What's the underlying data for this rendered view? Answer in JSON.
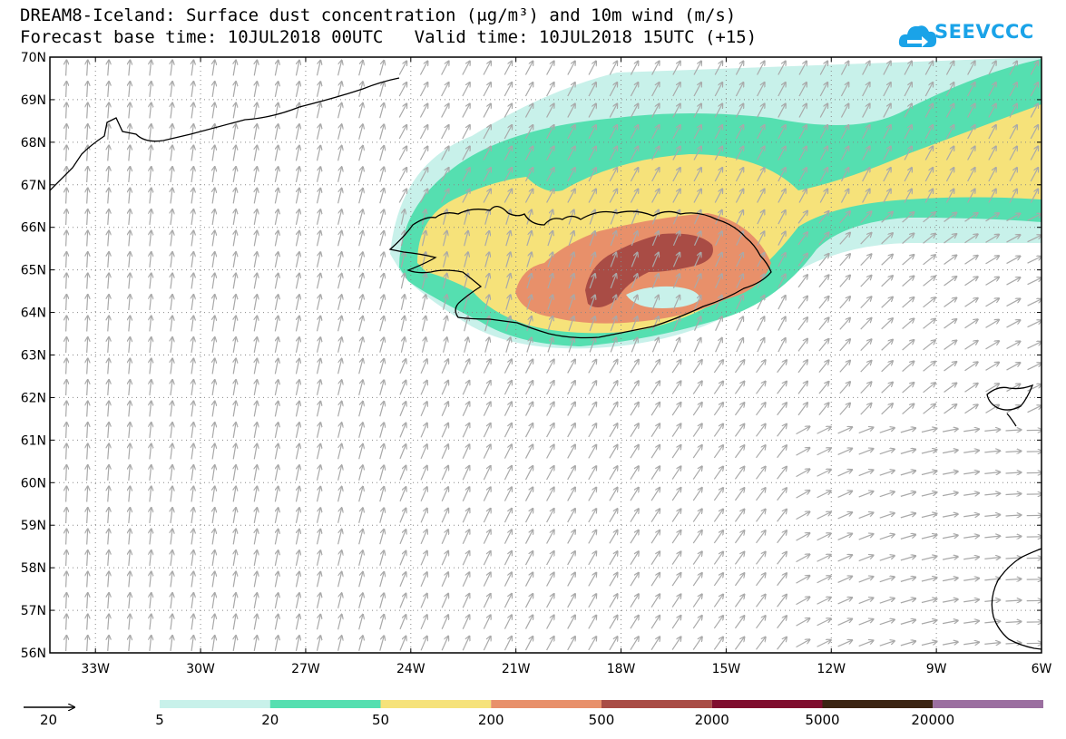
{
  "title": {
    "line1": "DREAM8-Iceland: Surface dust concentration (μg/m³) and 10m wind (m/s)",
    "line2": "Forecast base time: 10JUL2018 00UTC   Valid time: 10JUL2018 15UTC (+15)"
  },
  "logo": {
    "text": "SEEVCCC",
    "icon": "cloud-arrow-icon",
    "color": "#1aa3e8"
  },
  "map": {
    "lat_labels": [
      "70N",
      "69N",
      "68N",
      "67N",
      "66N",
      "65N",
      "64N",
      "63N",
      "62N",
      "61N",
      "60N",
      "59N",
      "58N",
      "57N",
      "56N"
    ],
    "lon_labels": [
      "33W",
      "30W",
      "27W",
      "24W",
      "21W",
      "18W",
      "15W",
      "12W",
      "9W",
      "6W"
    ],
    "lat_range": [
      56,
      70
    ],
    "lon_range": [
      -34.3,
      -6
    ],
    "wind_arrow_color": "#a9a9a9",
    "dust_peak_region": "South-central Iceland"
  },
  "legend": {
    "ref_arrow_value": "20",
    "colorbar_labels": [
      "5",
      "20",
      "50",
      "200",
      "500",
      "2000",
      "5000",
      "20000"
    ],
    "colors": [
      "#c8f1ea",
      "#55dfb0",
      "#f6e27a",
      "#e8906a",
      "#a94c45",
      "#7f0d2e",
      "#3b2412",
      "#9b6fa0"
    ]
  }
}
